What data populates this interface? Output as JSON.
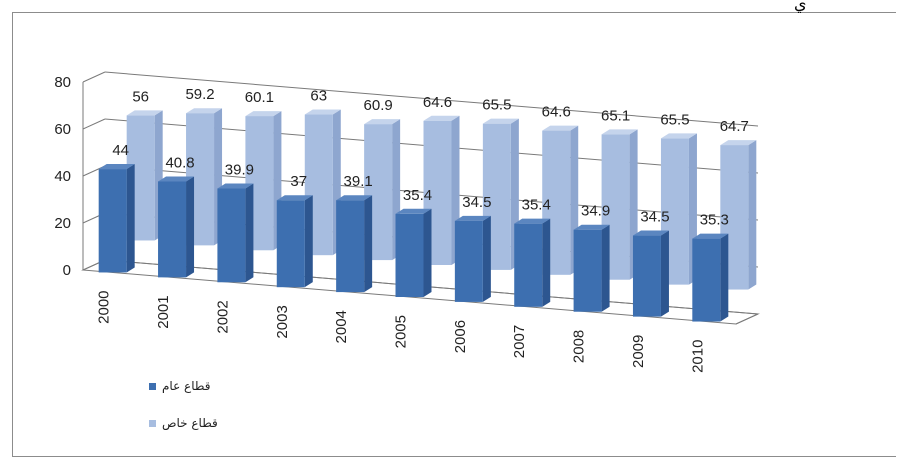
{
  "header": {
    "corner_glyph": "ي"
  },
  "chart_data": {
    "type": "bar",
    "categories": [
      "2000",
      "2001",
      "2002",
      "2003",
      "2004",
      "2005",
      "2006",
      "2007",
      "2008",
      "2009",
      "2010"
    ],
    "series": [
      {
        "name": "قطاع عام",
        "values": [
          44,
          40.8,
          39.9,
          37,
          39.1,
          35.4,
          34.5,
          35.4,
          34.9,
          34.5,
          35.3
        ],
        "color": "#3d6fb0"
      },
      {
        "name": "قطاع خاص",
        "values": [
          56,
          59.2,
          60.1,
          63,
          60.9,
          64.6,
          65.5,
          64.6,
          65.1,
          65.5,
          64.7
        ],
        "color": "#a7bde0"
      }
    ],
    "data_labels": {
      "public": [
        "44",
        "40.8",
        "39.9",
        "37",
        "39.1",
        "35.4",
        "34.5",
        "35.4",
        "34.9",
        "34.5",
        "35.3"
      ],
      "private": [
        "56",
        "59.2",
        "60.1",
        "63",
        "60.9",
        "64.6",
        "65.5",
        "64.6",
        "65.1",
        "65.5",
        "64.7"
      ]
    },
    "y_ticks": [
      "0",
      "20",
      "40",
      "60",
      "80"
    ],
    "ylim": [
      0,
      80
    ],
    "style": "3d-clustered-column",
    "grid": true,
    "legend_position": "bottom-left"
  }
}
